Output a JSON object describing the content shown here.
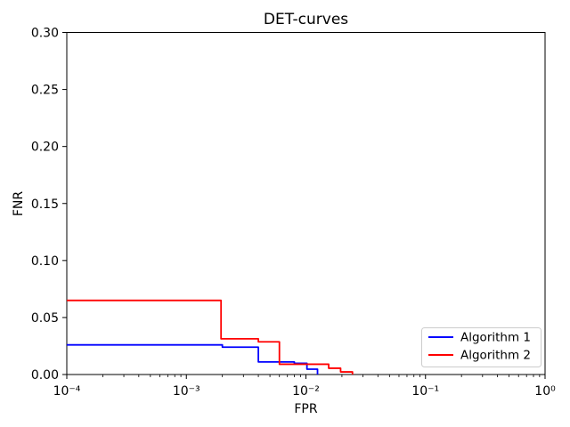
{
  "figure": {
    "background": "#ffffff",
    "spine_color": "#000000"
  },
  "chart_data": {
    "type": "line",
    "subtype": "step-DET-curve",
    "title": "DET-curves",
    "xlabel": "FPR",
    "ylabel": "FNR",
    "xscale": "log",
    "xlim": [
      0.0001,
      1
    ],
    "ylim": [
      0,
      0.3
    ],
    "grid": false,
    "xticks": [
      0.0001,
      0.001,
      0.01,
      0.1,
      1
    ],
    "xtick_labels": [
      "10⁻⁴",
      "10⁻³",
      "10⁻²",
      "10⁻¹",
      "10⁰"
    ],
    "yticks": [
      0,
      0.05,
      0.1,
      0.15,
      0.2,
      0.25,
      0.3
    ],
    "ytick_labels": [
      "0.00",
      "0.05",
      "0.10",
      "0.15",
      "0.20",
      "0.25",
      "0.30"
    ],
    "legend": {
      "position": "lower right",
      "border_color": "#cccccc",
      "background": "#ffffff"
    },
    "series": [
      {
        "name": "Algorithm 1",
        "color": "#0000ff",
        "x": [
          0.0001,
          0.002,
          0.002,
          0.004,
          0.004,
          0.008,
          0.008,
          0.0102,
          0.0102,
          0.0125,
          0.0125
        ],
        "y": [
          0.026,
          0.026,
          0.024,
          0.024,
          0.011,
          0.011,
          0.0098,
          0.0098,
          0.0047,
          0.0047,
          0
        ]
      },
      {
        "name": "Algorithm 2",
        "color": "#ff0000",
        "x": [
          0.0001,
          0.00195,
          0.00195,
          0.004,
          0.004,
          0.006,
          0.006,
          0.0155,
          0.0155,
          0.0195,
          0.0195,
          0.0245,
          0.0245
        ],
        "y": [
          0.065,
          0.065,
          0.0313,
          0.0313,
          0.0287,
          0.0287,
          0.009,
          0.009,
          0.0055,
          0.0055,
          0.0023,
          0.0023,
          0
        ]
      }
    ]
  }
}
